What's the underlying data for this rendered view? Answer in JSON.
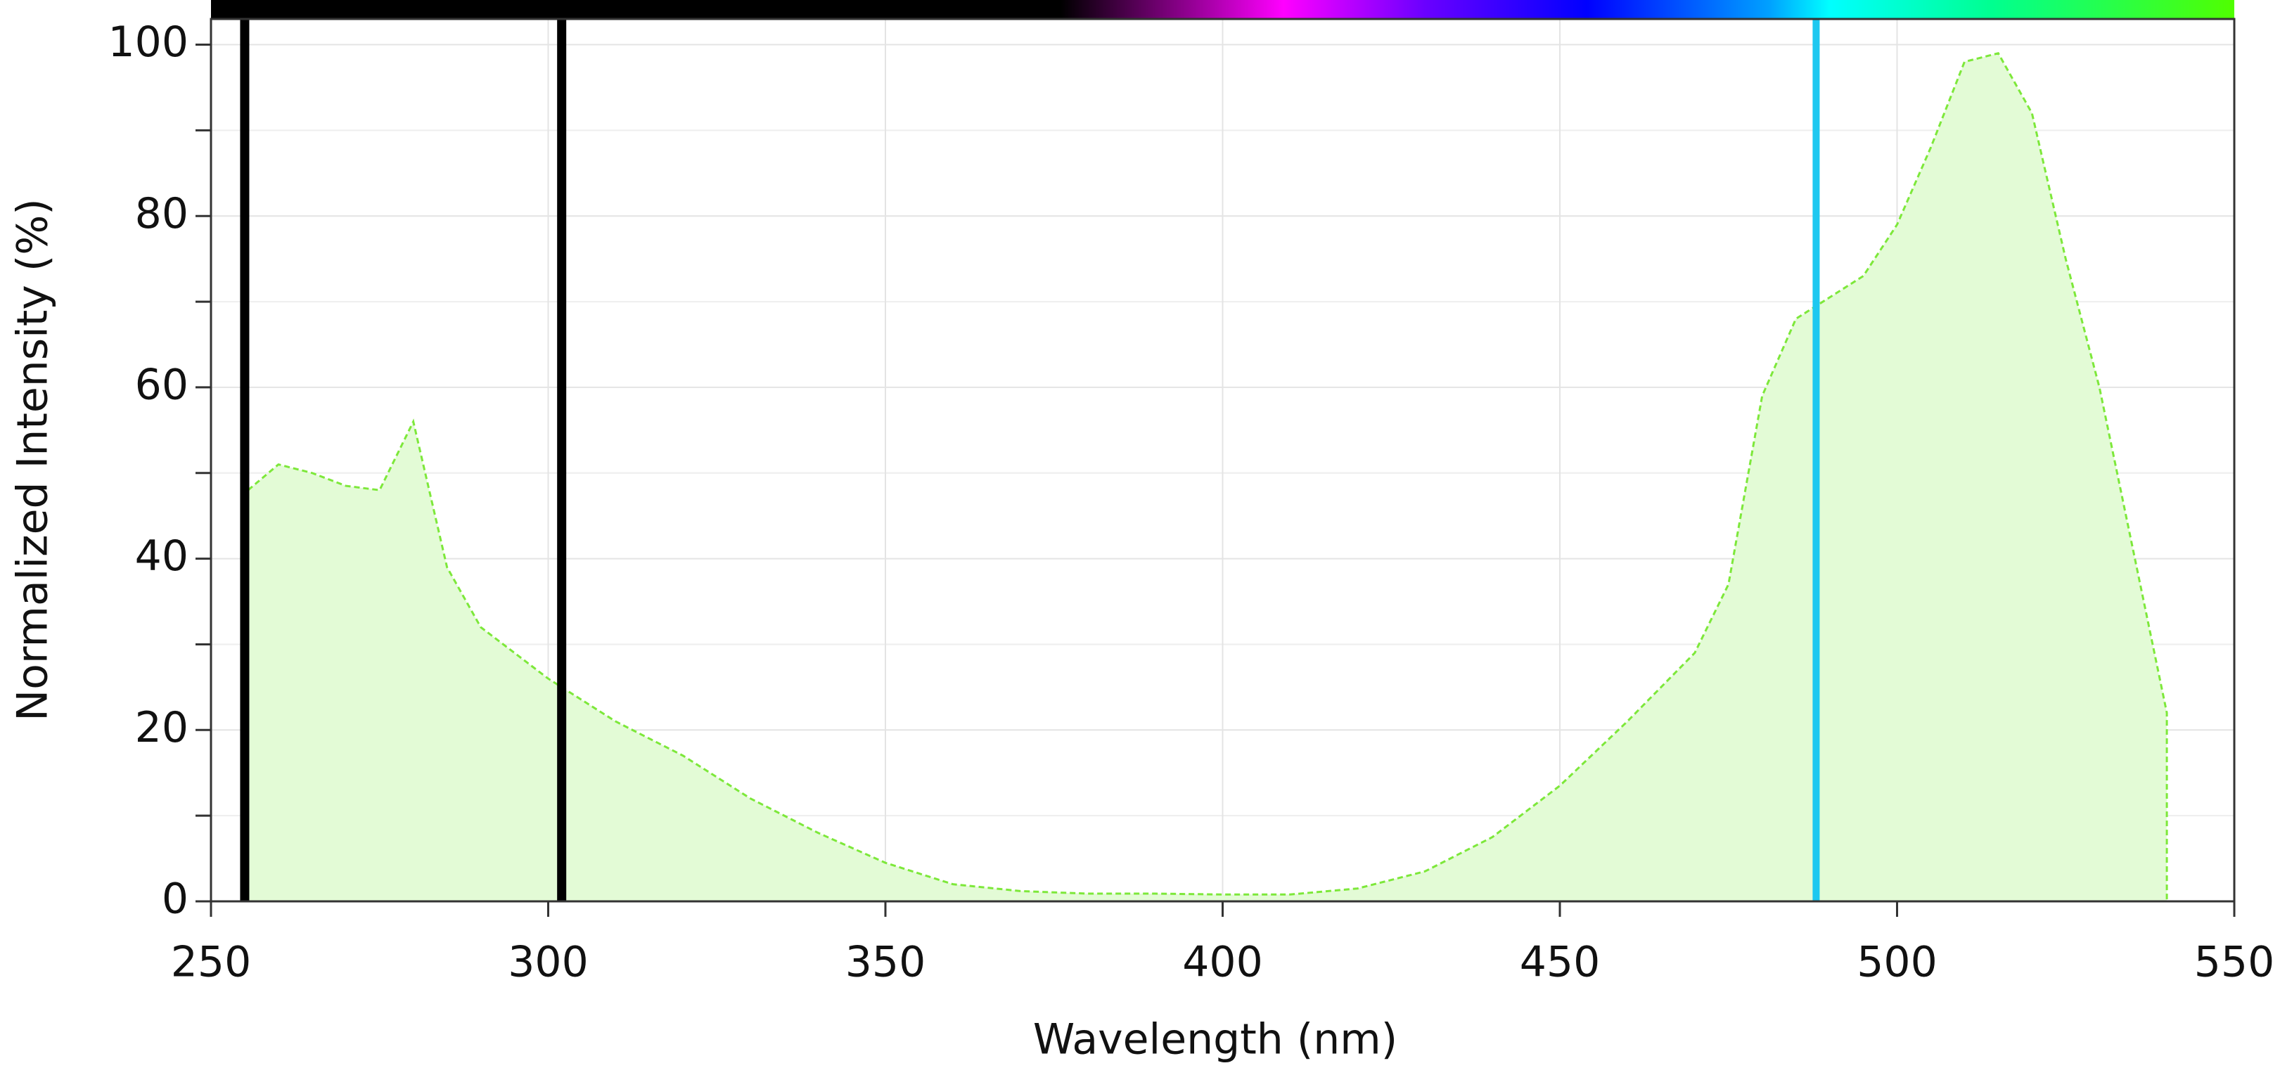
{
  "chart_data": {
    "type": "area",
    "xlabel": "Wavelength (nm)",
    "ylabel": "Normalized Intensity (%)",
    "xlim": [
      250,
      550
    ],
    "xticks": [
      250,
      300,
      350,
      400,
      450,
      500,
      550
    ],
    "ylim": [
      0,
      103
    ],
    "yticks": [
      0,
      20,
      40,
      60,
      80,
      100
    ],
    "yminorticks": [
      10,
      30,
      50,
      70,
      90
    ],
    "grid": true,
    "series": [
      {
        "color": "#7de83a",
        "fill": "#e3fbd6",
        "x": [
          255,
          255.5,
          260,
          265,
          270,
          275,
          280,
          285,
          290,
          300,
          310,
          320,
          330,
          340,
          350,
          360,
          370,
          380,
          390,
          400,
          410,
          420,
          430,
          440,
          450,
          460,
          465,
          470,
          475,
          480,
          485,
          490,
          495,
          500,
          505,
          510,
          515,
          520,
          525,
          530,
          535,
          540,
          540
        ],
        "y": [
          0,
          48,
          51,
          50,
          48.5,
          48,
          56,
          39,
          32,
          26,
          21,
          17,
          12,
          8,
          4.5,
          2,
          1.2,
          0.9,
          0.9,
          0.8,
          0.8,
          1.5,
          3.5,
          7.5,
          13.5,
          21,
          25,
          29,
          37,
          59,
          68,
          70.5,
          73,
          79,
          88,
          98,
          99,
          92,
          75,
          60,
          41,
          22,
          0
        ]
      }
    ],
    "markers": [
      {
        "x": 255,
        "color": "#000000"
      },
      {
        "x": 302,
        "color": "#000000"
      },
      {
        "x": 488,
        "color": "#1ec8f0"
      }
    ]
  }
}
